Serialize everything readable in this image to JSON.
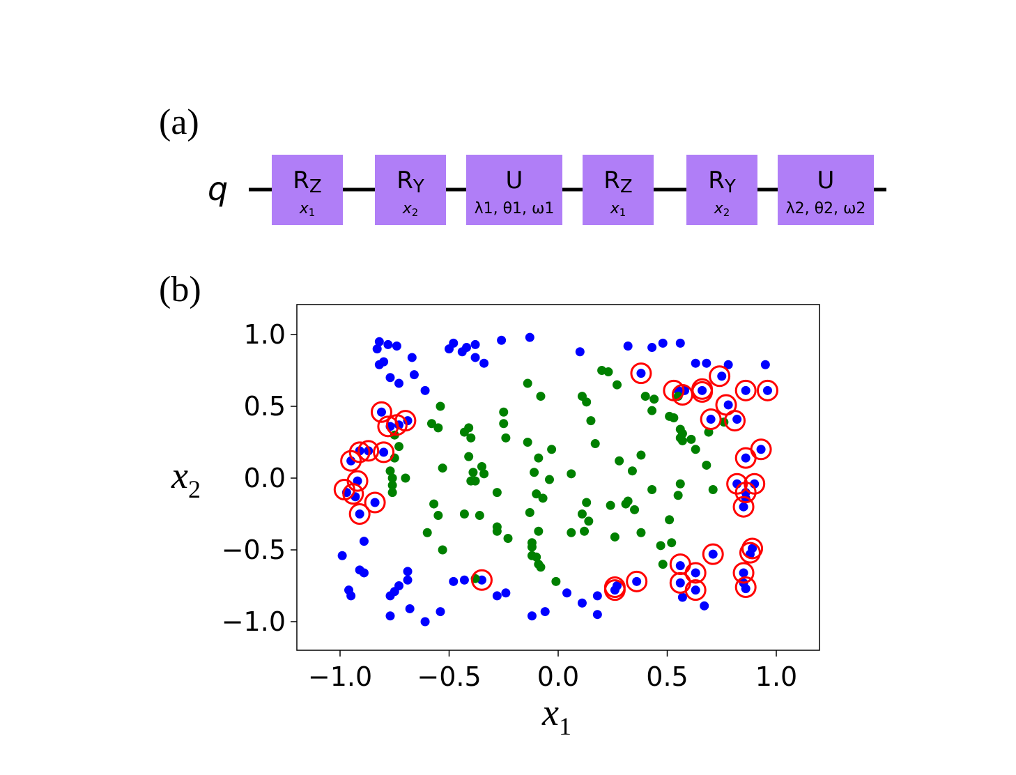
{
  "panel_labels": {
    "a": "(a)",
    "b": "(b)"
  },
  "circuit": {
    "qubit_label": "q",
    "gate_color": "#b07ef7",
    "gates": [
      {
        "name": "R",
        "sub": "Z",
        "param": "x",
        "param_sub": "1"
      },
      {
        "name": "R",
        "sub": "Y",
        "param": "x",
        "param_sub": "2"
      },
      {
        "name": "U",
        "sub": "",
        "param": "λ1, θ1, ω1",
        "param_sub": ""
      },
      {
        "name": "R",
        "sub": "Z",
        "param": "x",
        "param_sub": "1"
      },
      {
        "name": "R",
        "sub": "Y",
        "param": "x",
        "param_sub": "2"
      },
      {
        "name": "U",
        "sub": "",
        "param": "λ2, θ2, ω2",
        "param_sub": ""
      }
    ]
  },
  "chart_data": {
    "type": "scatter",
    "xlabel": "x",
    "xlabel_sub": "1",
    "ylabel": "x",
    "ylabel_sub": "2",
    "xlim": [
      -1.2,
      1.2
    ],
    "ylim": [
      -1.2,
      1.2
    ],
    "xticks": [
      -1.0,
      -0.5,
      0.0,
      0.5,
      1.0
    ],
    "xtick_labels": [
      "−1.0",
      "−0.5",
      "0.0",
      "0.5",
      "1.0"
    ],
    "yticks": [
      1.0,
      0.5,
      0.0,
      -0.5,
      -1.0
    ],
    "ytick_labels": [
      "1.0",
      "0.5",
      "0.0",
      "−0.5",
      "−1.0"
    ],
    "colors": {
      "class_outer": "#0000ff",
      "class_inner": "#008000",
      "misclassified": "#ff0000"
    },
    "series": [
      {
        "color": "#0000ff",
        "points": [
          [
            -0.82,
            0.95
          ],
          [
            -0.78,
            0.93
          ],
          [
            -0.74,
            0.92
          ],
          [
            -0.83,
            0.9
          ],
          [
            -0.8,
            0.81
          ],
          [
            -0.67,
            0.84
          ],
          [
            -0.82,
            0.79
          ],
          [
            -0.77,
            0.7
          ],
          [
            -0.66,
            0.72
          ],
          [
            -0.73,
            0.66
          ],
          [
            -0.61,
            0.61
          ],
          [
            -0.48,
            0.94
          ],
          [
            -0.5,
            0.9
          ],
          [
            -0.44,
            0.88
          ],
          [
            -0.42,
            0.91
          ],
          [
            -0.38,
            0.93
          ],
          [
            -0.38,
            0.84
          ],
          [
            -0.34,
            0.8
          ],
          [
            -0.26,
            0.96
          ],
          [
            -0.13,
            0.98
          ],
          [
            0.1,
            0.88
          ],
          [
            0.32,
            0.92
          ],
          [
            0.43,
            0.91
          ],
          [
            0.48,
            0.94
          ],
          [
            0.56,
            0.94
          ],
          [
            0.63,
            0.8
          ],
          [
            0.68,
            0.8
          ],
          [
            0.78,
            0.79
          ],
          [
            0.95,
            0.79
          ],
          [
            0.38,
            0.73
          ],
          [
            0.55,
            0.61
          ],
          [
            0.58,
            0.61
          ],
          [
            0.66,
            0.61
          ],
          [
            0.75,
            0.71
          ],
          [
            0.86,
            0.61
          ],
          [
            0.96,
            0.61
          ],
          [
            0.78,
            0.51
          ],
          [
            0.7,
            0.41
          ],
          [
            0.82,
            0.41
          ],
          [
            -0.81,
            0.46
          ],
          [
            -0.73,
            0.37
          ],
          [
            -0.77,
            0.36
          ],
          [
            -0.69,
            0.4
          ],
          [
            -0.87,
            0.19
          ],
          [
            -0.91,
            0.19
          ],
          [
            -0.8,
            0.18
          ],
          [
            -0.95,
            0.12
          ],
          [
            -0.92,
            -0.02
          ],
          [
            -0.97,
            -0.1
          ],
          [
            -0.93,
            -0.13
          ],
          [
            -0.84,
            -0.17
          ],
          [
            -0.91,
            -0.25
          ],
          [
            0.93,
            0.2
          ],
          [
            0.86,
            0.14
          ],
          [
            0.82,
            -0.04
          ],
          [
            0.9,
            -0.04
          ],
          [
            0.86,
            -0.1
          ],
          [
            0.86,
            -0.14
          ],
          [
            0.85,
            -0.2
          ],
          [
            -0.89,
            -0.44
          ],
          [
            -0.99,
            -0.54
          ],
          [
            -0.91,
            -0.64
          ],
          [
            -0.89,
            -0.66
          ],
          [
            -0.96,
            -0.78
          ],
          [
            -0.95,
            -0.82
          ],
          [
            -0.69,
            -0.65
          ],
          [
            -0.69,
            -0.71
          ],
          [
            -0.73,
            -0.75
          ],
          [
            -0.75,
            -0.79
          ],
          [
            -0.77,
            -0.82
          ],
          [
            -0.77,
            -0.96
          ],
          [
            -0.68,
            -0.91
          ],
          [
            -0.61,
            -1.0
          ],
          [
            -0.54,
            -0.93
          ],
          [
            -0.48,
            -0.72
          ],
          [
            -0.43,
            -0.71
          ],
          [
            -0.35,
            -0.71
          ],
          [
            -0.28,
            -0.82
          ],
          [
            -0.24,
            -0.8
          ],
          [
            -0.12,
            -0.96
          ],
          [
            -0.06,
            -0.93
          ],
          [
            0.04,
            -0.8
          ],
          [
            0.11,
            -0.87
          ],
          [
            0.18,
            -0.82
          ],
          [
            0.18,
            -0.95
          ],
          [
            0.26,
            -0.78
          ],
          [
            0.27,
            -0.75
          ],
          [
            0.36,
            -0.72
          ],
          [
            0.56,
            -0.61
          ],
          [
            0.56,
            -0.73
          ],
          [
            0.63,
            -0.66
          ],
          [
            0.63,
            -0.78
          ],
          [
            0.57,
            -0.83
          ],
          [
            0.67,
            -0.89
          ],
          [
            0.71,
            -0.53
          ],
          [
            0.89,
            -0.49
          ],
          [
            0.88,
            -0.53
          ],
          [
            0.85,
            -0.66
          ],
          [
            0.85,
            -0.73
          ],
          [
            0.86,
            -0.77
          ]
        ]
      },
      {
        "color": "#008000",
        "points": [
          [
            -0.75,
            0.3
          ],
          [
            -0.73,
            0.22
          ],
          [
            -0.75,
            0.14
          ],
          [
            -0.77,
            0.05
          ],
          [
            -0.76,
            0.0
          ],
          [
            -0.7,
            0.0
          ],
          [
            -0.76,
            -0.05
          ],
          [
            -0.76,
            -0.1
          ],
          [
            -0.58,
            0.38
          ],
          [
            -0.54,
            0.5
          ],
          [
            -0.55,
            0.35
          ],
          [
            -0.53,
            0.07
          ],
          [
            -0.57,
            -0.18
          ],
          [
            -0.55,
            -0.26
          ],
          [
            -0.6,
            -0.38
          ],
          [
            -0.53,
            -0.5
          ],
          [
            -0.43,
            0.32
          ],
          [
            -0.41,
            0.35
          ],
          [
            -0.4,
            0.28
          ],
          [
            -0.41,
            0.15
          ],
          [
            -0.39,
            0.04
          ],
          [
            -0.38,
            -0.02
          ],
          [
            -0.4,
            -0.02
          ],
          [
            -0.43,
            -0.25
          ],
          [
            -0.35,
            0.08
          ],
          [
            -0.34,
            0.03
          ],
          [
            -0.36,
            -0.26
          ],
          [
            -0.38,
            -0.7
          ],
          [
            -0.25,
            0.46
          ],
          [
            -0.25,
            0.38
          ],
          [
            -0.24,
            0.28
          ],
          [
            -0.28,
            -0.34
          ],
          [
            -0.28,
            -0.37
          ],
          [
            -0.23,
            -0.42
          ],
          [
            -0.28,
            -0.1
          ],
          [
            -0.14,
            0.66
          ],
          [
            -0.08,
            0.57
          ],
          [
            -0.14,
            0.25
          ],
          [
            -0.09,
            0.14
          ],
          [
            -0.11,
            0.04
          ],
          [
            -0.1,
            -0.11
          ],
          [
            -0.13,
            -0.24
          ],
          [
            -0.07,
            -0.14
          ],
          [
            -0.03,
            0.2
          ],
          [
            -0.04,
            -0.01
          ],
          [
            -0.09,
            -0.37
          ],
          [
            -0.12,
            -0.45
          ],
          [
            -0.12,
            -0.48
          ],
          [
            -0.12,
            -0.54
          ],
          [
            -0.1,
            -0.55
          ],
          [
            -0.09,
            -0.6
          ],
          [
            -0.08,
            -0.62
          ],
          [
            -0.01,
            -0.72
          ],
          [
            0.06,
            -0.38
          ],
          [
            0.06,
            0.03
          ],
          [
            0.11,
            0.57
          ],
          [
            0.13,
            0.53
          ],
          [
            0.15,
            0.4
          ],
          [
            0.11,
            -0.25
          ],
          [
            0.13,
            -0.17
          ],
          [
            0.14,
            -0.3
          ],
          [
            0.12,
            -0.37
          ],
          [
            0.17,
            0.24
          ],
          [
            0.2,
            0.75
          ],
          [
            0.23,
            0.74
          ],
          [
            0.27,
            0.65
          ],
          [
            0.28,
            0.12
          ],
          [
            0.24,
            -0.19
          ],
          [
            0.26,
            -0.41
          ],
          [
            0.31,
            -0.18
          ],
          [
            0.35,
            -0.22
          ],
          [
            0.32,
            -0.16
          ],
          [
            0.34,
            0.05
          ],
          [
            0.38,
            0.16
          ],
          [
            0.38,
            -0.38
          ],
          [
            0.4,
            0.57
          ],
          [
            0.43,
            0.47
          ],
          [
            0.44,
            0.55
          ],
          [
            0.43,
            -0.08
          ],
          [
            0.47,
            -0.47
          ],
          [
            0.48,
            -0.6
          ],
          [
            0.51,
            -0.29
          ],
          [
            0.51,
            0.43
          ],
          [
            0.55,
            0.57
          ],
          [
            0.53,
            0.42
          ],
          [
            0.56,
            0.34
          ],
          [
            0.57,
            0.31
          ],
          [
            0.56,
            0.28
          ],
          [
            0.57,
            0.26
          ],
          [
            0.55,
            -0.12
          ],
          [
            0.56,
            -0.04
          ],
          [
            0.52,
            -0.45
          ],
          [
            0.61,
            0.27
          ],
          [
            0.63,
            0.2
          ],
          [
            0.68,
            0.09
          ],
          [
            0.69,
            0.32
          ],
          [
            0.71,
            -0.08
          ],
          [
            0.76,
            0.39
          ]
        ]
      }
    ],
    "misclassified": [
      [
        0.38,
        0.73
      ],
      [
        0.53,
        0.61
      ],
      [
        0.57,
        0.58
      ],
      [
        0.66,
        0.6
      ],
      [
        0.66,
        0.62
      ],
      [
        0.74,
        0.71
      ],
      [
        0.86,
        0.61
      ],
      [
        0.96,
        0.61
      ],
      [
        0.77,
        0.51
      ],
      [
        0.7,
        0.41
      ],
      [
        0.81,
        0.4
      ],
      [
        -0.81,
        0.46
      ],
      [
        -0.78,
        0.36
      ],
      [
        -0.74,
        0.37
      ],
      [
        -0.7,
        0.4
      ],
      [
        -0.87,
        0.19
      ],
      [
        -0.91,
        0.18
      ],
      [
        -0.8,
        0.18
      ],
      [
        -0.95,
        0.12
      ],
      [
        -0.92,
        -0.02
      ],
      [
        -0.98,
        -0.08
      ],
      [
        -0.94,
        -0.11
      ],
      [
        -0.84,
        -0.17
      ],
      [
        -0.91,
        -0.25
      ],
      [
        0.93,
        0.2
      ],
      [
        0.86,
        0.14
      ],
      [
        0.82,
        -0.04
      ],
      [
        0.9,
        -0.04
      ],
      [
        0.86,
        -0.1
      ],
      [
        0.85,
        -0.2
      ],
      [
        0.71,
        -0.53
      ],
      [
        0.89,
        -0.49
      ],
      [
        0.88,
        -0.52
      ],
      [
        0.56,
        -0.6
      ],
      [
        0.56,
        -0.73
      ],
      [
        0.63,
        -0.66
      ],
      [
        0.63,
        -0.78
      ],
      [
        0.85,
        -0.66
      ],
      [
        0.86,
        -0.76
      ],
      [
        0.36,
        -0.72
      ],
      [
        0.26,
        -0.76
      ],
      [
        0.26,
        -0.78
      ],
      [
        -0.35,
        -0.71
      ]
    ]
  }
}
